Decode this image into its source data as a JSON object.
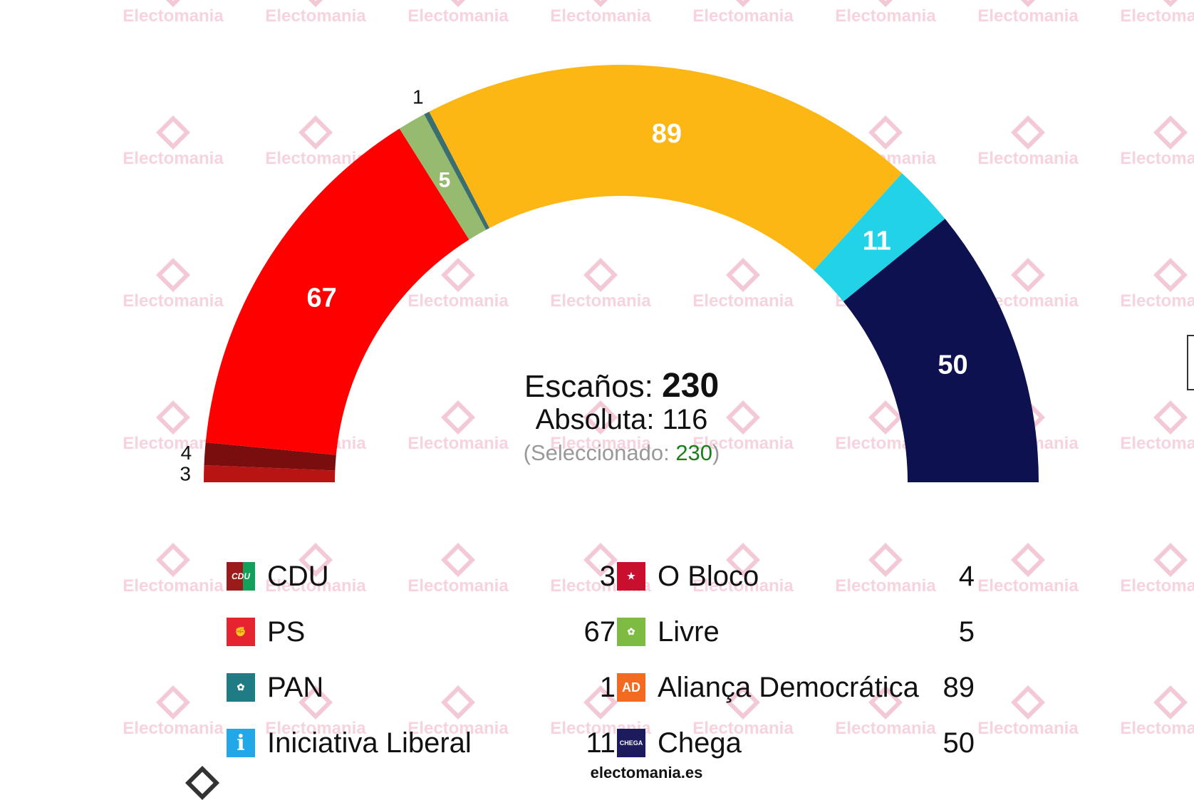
{
  "watermark": "Electomania",
  "center": {
    "total_label": "Escaños: ",
    "total_value": "230",
    "majority_text": "Absoluta: 116",
    "selected_prefix": "(Seleccionado: ",
    "selected_value": "230",
    "selected_suffix": ")"
  },
  "footer": {
    "site": "electomania.es"
  },
  "chart_data": {
    "type": "parliament-semicircle",
    "total_seats": 230,
    "majority": 116,
    "series": [
      {
        "name": "CDU",
        "value": 3,
        "color": "#b81414"
      },
      {
        "name": "O Bloco",
        "value": 4,
        "color": "#7a0e0e"
      },
      {
        "name": "PS",
        "value": 67,
        "color": "#ff0000"
      },
      {
        "name": "Livre",
        "value": 5,
        "color": "#96bb6e"
      },
      {
        "name": "PAN",
        "value": 1,
        "color": "#3b6e6e"
      },
      {
        "name": "Aliança Democrática",
        "value": 89,
        "color": "#fdb714"
      },
      {
        "name": "Iniciativa Liberal",
        "value": 11,
        "color": "#22d3e8"
      },
      {
        "name": "Chega",
        "value": 50,
        "color": "#0d1150"
      }
    ]
  },
  "legend": {
    "left": [
      {
        "name": "CDU",
        "seats": "3",
        "icon": "cdu-logo-icon",
        "logo_text": "CDU",
        "logo_color": "#9b1b1b"
      },
      {
        "name": "PS",
        "seats": "67",
        "icon": "ps-fist-rose-icon",
        "logo_text": "✊",
        "logo_color": "#e6242f"
      },
      {
        "name": "PAN",
        "seats": "1",
        "icon": "pan-tree-icon",
        "logo_text": "✿",
        "logo_color": "#1f7c84"
      },
      {
        "name": "Iniciativa Liberal",
        "seats": "11",
        "icon": "il-info-icon",
        "logo_text": "i",
        "logo_color": "#22a7e8"
      }
    ],
    "right": [
      {
        "name": "O Bloco",
        "seats": "4",
        "icon": "bloco-star-icon",
        "logo_text": "★",
        "logo_color": "#c8102e"
      },
      {
        "name": "Livre",
        "seats": "5",
        "icon": "livre-poppy-icon",
        "logo_text": "✿",
        "logo_color": "#7dbb42"
      },
      {
        "name": "Aliança Democrática",
        "seats": "89",
        "icon": "ad-logo-icon",
        "logo_text": "AD",
        "logo_color": "#f26b21"
      },
      {
        "name": "Chega",
        "seats": "50",
        "icon": "chega-logo-icon",
        "logo_text": "CHEGA",
        "logo_color": "#1b1b5e"
      }
    ]
  }
}
